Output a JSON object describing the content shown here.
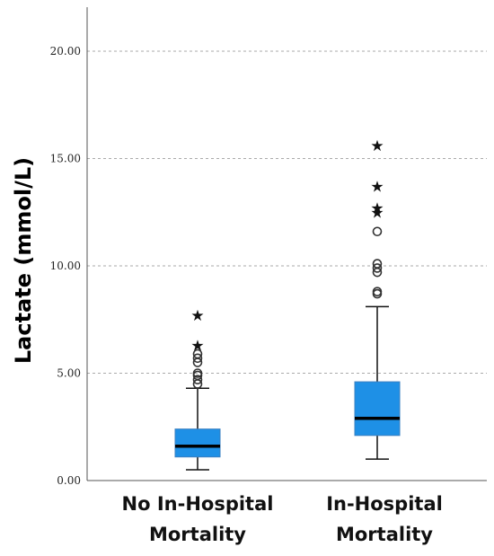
{
  "chart_data": {
    "type": "boxplot",
    "ylabel": "Lactate (mmol/L)",
    "xlabel": "",
    "ylim": [
      0,
      22
    ],
    "yticks": [
      "0.00",
      "5.00",
      "10.00",
      "15.00",
      "20.00"
    ],
    "grid": true,
    "box_color": "#1e90e6",
    "median_color": "#000000",
    "categories": [
      {
        "label_lines": [
          "No In-Hospital",
          "Mortality"
        ],
        "whisker_low": 0.5,
        "q1": 1.1,
        "median": 1.6,
        "q3": 2.4,
        "whisker_high": 4.3,
        "outliers_circle": [
          4.5,
          4.7,
          4.9,
          5.0,
          5.5,
          5.7,
          5.9
        ],
        "outliers_extreme": [
          6.3,
          7.7
        ]
      },
      {
        "label_lines": [
          "In-Hospital",
          "Mortality"
        ],
        "whisker_low": 1.0,
        "q1": 2.1,
        "median": 2.9,
        "q3": 4.6,
        "whisker_high": 8.1,
        "outliers_circle": [
          8.7,
          8.8,
          9.7,
          9.9,
          10.1,
          11.6
        ],
        "outliers_extreme": [
          12.5,
          12.7,
          13.7,
          15.6
        ]
      }
    ]
  }
}
